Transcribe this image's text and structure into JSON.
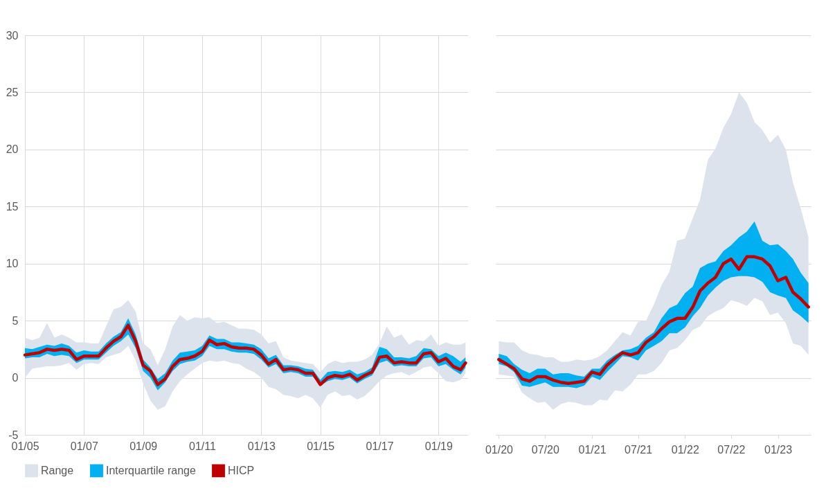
{
  "chart_data": [
    {
      "type": "line",
      "x": [
        "2005-01",
        "2005-04",
        "2005-07",
        "2005-10",
        "2006-01",
        "2006-04",
        "2006-07",
        "2006-10",
        "2007-01",
        "2007-04",
        "2007-07",
        "2007-10",
        "2008-01",
        "2008-04",
        "2008-07",
        "2008-10",
        "2009-01",
        "2009-04",
        "2009-07",
        "2009-10",
        "2010-01",
        "2010-04",
        "2010-07",
        "2010-10",
        "2011-01",
        "2011-04",
        "2011-07",
        "2011-10",
        "2012-01",
        "2012-04",
        "2012-07",
        "2012-10",
        "2013-01",
        "2013-04",
        "2013-07",
        "2013-10",
        "2014-01",
        "2014-04",
        "2014-07",
        "2014-10",
        "2015-01",
        "2015-04",
        "2015-07",
        "2015-10",
        "2016-01",
        "2016-04",
        "2016-07",
        "2016-10",
        "2017-01",
        "2017-04",
        "2017-07",
        "2017-10",
        "2018-01",
        "2018-04",
        "2018-07",
        "2018-10",
        "2019-01",
        "2019-04",
        "2019-07",
        "2019-10",
        "2019-12"
      ],
      "series": [
        {
          "name": "Range",
          "type": "line",
          "color": "#dce3ed",
          "values": [
            null,
            null,
            null,
            null,
            null,
            null,
            null,
            null,
            null,
            null,
            null,
            null,
            null,
            null,
            null,
            null,
            null,
            null,
            null,
            null,
            null,
            null,
            null,
            null,
            null,
            null,
            null,
            null,
            null,
            null,
            null,
            null,
            null,
            null,
            null,
            null,
            null,
            null,
            null,
            null,
            null,
            null,
            null,
            null,
            null,
            null,
            null,
            null,
            null,
            null,
            null,
            null,
            null,
            null,
            null,
            null,
            null,
            null,
            null,
            null,
            null
          ],
          "lower": [
            0.0,
            0.8,
            0.9,
            1.0,
            1.0,
            1.1,
            1.3,
            0.7,
            1.2,
            1.3,
            1.2,
            1.8,
            2.0,
            2.2,
            2.8,
            1.5,
            -0.5,
            -2.0,
            -2.8,
            -2.5,
            -1.2,
            -0.3,
            0.3,
            0.8,
            1.3,
            1.5,
            1.4,
            1.5,
            1.3,
            1.2,
            0.8,
            0.5,
            0.0,
            -0.8,
            -1.0,
            -1.5,
            -1.6,
            -1.8,
            -1.5,
            -1.8,
            -2.6,
            -1.5,
            -1.2,
            -1.6,
            -1.5,
            -1.9,
            -1.6,
            -1.0,
            -0.3,
            0.2,
            0.4,
            0.5,
            0.2,
            0.5,
            0.9,
            1.0,
            0.4,
            -0.3,
            -0.4,
            -0.2,
            0.4
          ],
          "upper": [
            3.5,
            3.3,
            3.5,
            4.8,
            3.5,
            3.8,
            3.5,
            3.1,
            3.1,
            3.0,
            3.0,
            4.5,
            6.0,
            6.2,
            6.8,
            5.8,
            3.0,
            2.5,
            1.1,
            2.5,
            4.5,
            5.5,
            5.0,
            5.3,
            5.2,
            5.3,
            4.8,
            4.9,
            4.6,
            4.3,
            4.3,
            4.2,
            3.8,
            3.0,
            3.2,
            1.8,
            1.5,
            1.4,
            1.3,
            1.2,
            0.5,
            1.2,
            1.5,
            1.3,
            1.4,
            1.4,
            1.6,
            2.0,
            3.0,
            4.5,
            3.5,
            3.8,
            2.9,
            3.3,
            3.2,
            3.8,
            2.8,
            3.1,
            2.9,
            2.9,
            3.1
          ]
        },
        {
          "name": "Interquartile range",
          "type": "line",
          "color": "#00b0f0",
          "values": [
            null,
            null,
            null,
            null,
            null,
            null,
            null,
            null,
            null,
            null,
            null,
            null,
            null,
            null,
            null,
            null,
            null,
            null,
            null,
            null,
            null,
            null,
            null,
            null,
            null,
            null,
            null,
            null,
            null,
            null,
            null,
            null,
            null,
            null,
            null,
            null,
            null,
            null,
            null,
            null,
            null,
            null,
            null,
            null,
            null,
            null,
            null,
            null,
            null,
            null,
            null,
            null,
            null,
            null,
            null,
            null,
            null,
            null,
            null,
            null,
            null
          ],
          "lower": [
            1.7,
            1.8,
            1.8,
            2.1,
            1.9,
            2.0,
            1.9,
            1.3,
            1.6,
            1.6,
            1.6,
            2.2,
            2.8,
            3.2,
            3.8,
            2.6,
            0.6,
            0.0,
            -1.1,
            -0.4,
            0.6,
            1.2,
            1.4,
            1.5,
            1.9,
            2.8,
            2.5,
            2.5,
            2.3,
            2.2,
            2.2,
            2.1,
            1.6,
            0.9,
            1.2,
            0.4,
            0.5,
            0.4,
            0.1,
            0.1,
            -0.7,
            -0.3,
            -0.1,
            -0.2,
            0.0,
            -0.5,
            -0.1,
            0.2,
            1.3,
            1.5,
            1.0,
            1.1,
            1.0,
            1.0,
            1.7,
            1.8,
            1.0,
            1.2,
            0.7,
            0.3,
            0.9
          ],
          "upper": [
            2.6,
            2.5,
            2.7,
            2.9,
            2.8,
            3.0,
            2.8,
            2.2,
            2.4,
            2.3,
            2.3,
            3.0,
            3.6,
            4.0,
            5.2,
            3.8,
            1.6,
            0.9,
            -0.1,
            0.4,
            1.5,
            2.2,
            2.3,
            2.4,
            2.8,
            3.7,
            3.4,
            3.4,
            3.1,
            3.1,
            3.0,
            2.9,
            2.5,
            1.7,
            2.0,
            1.1,
            1.1,
            1.0,
            0.8,
            0.7,
            -0.2,
            0.5,
            0.6,
            0.5,
            0.7,
            0.3,
            0.5,
            0.9,
            2.7,
            2.5,
            1.8,
            1.8,
            1.7,
            1.9,
            2.6,
            2.5,
            1.9,
            2.2,
            1.9,
            1.4,
            1.8
          ]
        },
        {
          "name": "HICP",
          "type": "line",
          "color": "#c00000",
          "values": [
            2.0,
            2.1,
            2.2,
            2.5,
            2.4,
            2.5,
            2.4,
            1.6,
            1.9,
            1.9,
            1.9,
            2.6,
            3.2,
            3.6,
            4.6,
            3.2,
            1.1,
            0.6,
            -0.6,
            -0.1,
            1.0,
            1.6,
            1.7,
            1.9,
            2.3,
            3.3,
            2.9,
            3.0,
            2.7,
            2.6,
            2.6,
            2.5,
            2.0,
            1.2,
            1.6,
            0.7,
            0.8,
            0.7,
            0.4,
            0.4,
            -0.6,
            0.0,
            0.2,
            0.1,
            0.3,
            -0.2,
            0.2,
            0.5,
            1.8,
            1.9,
            1.3,
            1.4,
            1.3,
            1.3,
            2.1,
            2.2,
            1.4,
            1.7,
            1.0,
            0.7,
            1.3
          ]
        }
      ],
      "xlim": [
        "2005-01",
        "2020-01"
      ],
      "xticks": [
        {
          "value": "2005-01",
          "label": "01/05"
        },
        {
          "value": "2007-01",
          "label": "01/07"
        },
        {
          "value": "2009-01",
          "label": "01/09"
        },
        {
          "value": "2011-01",
          "label": "01/11"
        },
        {
          "value": "2013-01",
          "label": "01/13"
        },
        {
          "value": "2015-01",
          "label": "01/15"
        },
        {
          "value": "2017-01",
          "label": "01/17"
        },
        {
          "value": "2019-01",
          "label": "01/19"
        }
      ],
      "ylim": [
        -5,
        30
      ],
      "yticks": [
        -5,
        0,
        5,
        10,
        15,
        20,
        25,
        30
      ],
      "grid": true,
      "legend": "bottom"
    },
    {
      "type": "line",
      "x": [
        "2020-01",
        "2020-02",
        "2020-03",
        "2020-04",
        "2020-05",
        "2020-06",
        "2020-07",
        "2020-08",
        "2020-09",
        "2020-10",
        "2020-11",
        "2020-12",
        "2021-01",
        "2021-02",
        "2021-03",
        "2021-04",
        "2021-05",
        "2021-06",
        "2021-07",
        "2021-08",
        "2021-09",
        "2021-10",
        "2021-11",
        "2021-12",
        "2022-01",
        "2022-02",
        "2022-03",
        "2022-04",
        "2022-05",
        "2022-06",
        "2022-07",
        "2022-08",
        "2022-09",
        "2022-10",
        "2022-11",
        "2022-12",
        "2023-01",
        "2023-02",
        "2023-03",
        "2023-04",
        "2023-05"
      ],
      "series": [
        {
          "type": "line",
          "color": "#dce3ed",
          "values": [
            null,
            null,
            null,
            null,
            null,
            null,
            null,
            null,
            null,
            null,
            null,
            null,
            null,
            null,
            null,
            null,
            null,
            null,
            null,
            null,
            null,
            null,
            null,
            null,
            null,
            null,
            null,
            null,
            null,
            null,
            null,
            null,
            null,
            null,
            null,
            null,
            null,
            null,
            null,
            null,
            null
          ],
          "lower": [
            0.3,
            0.2,
            0.1,
            -1.3,
            -1.8,
            -2.2,
            -2.1,
            -2.8,
            -2.3,
            -2.1,
            -2.2,
            -2.4,
            -2.4,
            -1.9,
            -2.0,
            -1.1,
            -1.2,
            -0.6,
            0.3,
            0.3,
            0.6,
            1.3,
            2.4,
            2.6,
            3.3,
            4.2,
            4.5,
            5.4,
            5.8,
            6.1,
            6.8,
            6.6,
            6.3,
            7.0,
            6.7,
            5.5,
            5.7,
            4.8,
            3.0,
            2.8,
            2.0
          ],
          "upper": [
            3.2,
            3.1,
            3.1,
            2.4,
            2.1,
            2.0,
            1.8,
            1.8,
            1.4,
            1.4,
            1.6,
            1.5,
            1.6,
            1.9,
            2.4,
            3.2,
            4.0,
            3.7,
            4.9,
            5.0,
            6.4,
            8.1,
            9.3,
            12.0,
            12.2,
            14.0,
            15.6,
            19.1,
            20.1,
            21.9,
            23.1,
            25.0,
            24.1,
            22.4,
            21.7,
            20.6,
            21.3,
            20.0,
            17.1,
            14.8,
            12.3
          ]
        },
        {
          "type": "line",
          "color": "#00b0f0",
          "values": [
            null,
            null,
            null,
            null,
            null,
            null,
            null,
            null,
            null,
            null,
            null,
            null,
            null,
            null,
            null,
            null,
            null,
            null,
            null,
            null,
            null,
            null,
            null,
            null,
            null,
            null,
            null,
            null,
            null,
            null,
            null,
            null,
            null,
            null,
            null,
            null,
            null,
            null,
            null,
            null,
            null
          ],
          "lower": [
            1.2,
            1.0,
            0.5,
            -0.7,
            -0.8,
            -0.6,
            -0.4,
            -0.8,
            -0.8,
            -0.8,
            -0.9,
            -0.7,
            0.1,
            -0.2,
            0.5,
            1.2,
            1.9,
            1.8,
            1.5,
            2.4,
            2.8,
            3.2,
            3.9,
            3.9,
            4.4,
            5.4,
            6.1,
            7.2,
            7.9,
            8.5,
            8.8,
            8.9,
            8.9,
            8.8,
            8.4,
            7.5,
            7.2,
            7.0,
            5.9,
            5.4,
            4.8
          ],
          "upper": [
            2.1,
            1.9,
            1.2,
            0.7,
            0.4,
            0.8,
            0.8,
            0.3,
            0.4,
            0.4,
            0.2,
            0.1,
            0.8,
            0.8,
            1.5,
            2.0,
            2.4,
            2.5,
            2.8,
            3.5,
            4.0,
            5.2,
            6.1,
            6.4,
            7.4,
            8.0,
            9.6,
            10.0,
            10.2,
            11.1,
            11.6,
            12.3,
            12.8,
            13.7,
            12.0,
            11.6,
            11.7,
            11.1,
            10.4,
            9.2,
            8.3
          ]
        },
        {
          "type": "line",
          "color": "#c00000",
          "values": [
            1.6,
            1.2,
            0.8,
            -0.1,
            -0.3,
            0.1,
            0.1,
            -0.2,
            -0.4,
            -0.5,
            -0.4,
            -0.3,
            0.5,
            0.3,
            1.1,
            1.7,
            2.2,
            2.0,
            2.2,
            3.1,
            3.6,
            4.3,
            4.9,
            5.2,
            5.2,
            6.2,
            7.6,
            8.3,
            8.8,
            10.0,
            10.4,
            9.5,
            10.6,
            10.6,
            10.4,
            9.8,
            8.5,
            8.8,
            7.5,
            6.9,
            6.2
          ]
        }
      ],
      "xlim": [
        "2019-12-20",
        "2023-05-10"
      ],
      "xticks": [
        {
          "value": "2020-01",
          "label": "01/20"
        },
        {
          "value": "2020-07",
          "label": "07/20"
        },
        {
          "value": "2021-01",
          "label": "01/21"
        },
        {
          "value": "2021-07",
          "label": "07/21"
        },
        {
          "value": "2022-01",
          "label": "01/22"
        },
        {
          "value": "2022-07",
          "label": "07/22"
        },
        {
          "value": "2023-01",
          "label": "01/23"
        }
      ],
      "ylim": [
        -5,
        30
      ],
      "yticks": [
        -5,
        0,
        5,
        10,
        15,
        20,
        25,
        30
      ],
      "grid": "y",
      "tick_labels": "x"
    }
  ]
}
